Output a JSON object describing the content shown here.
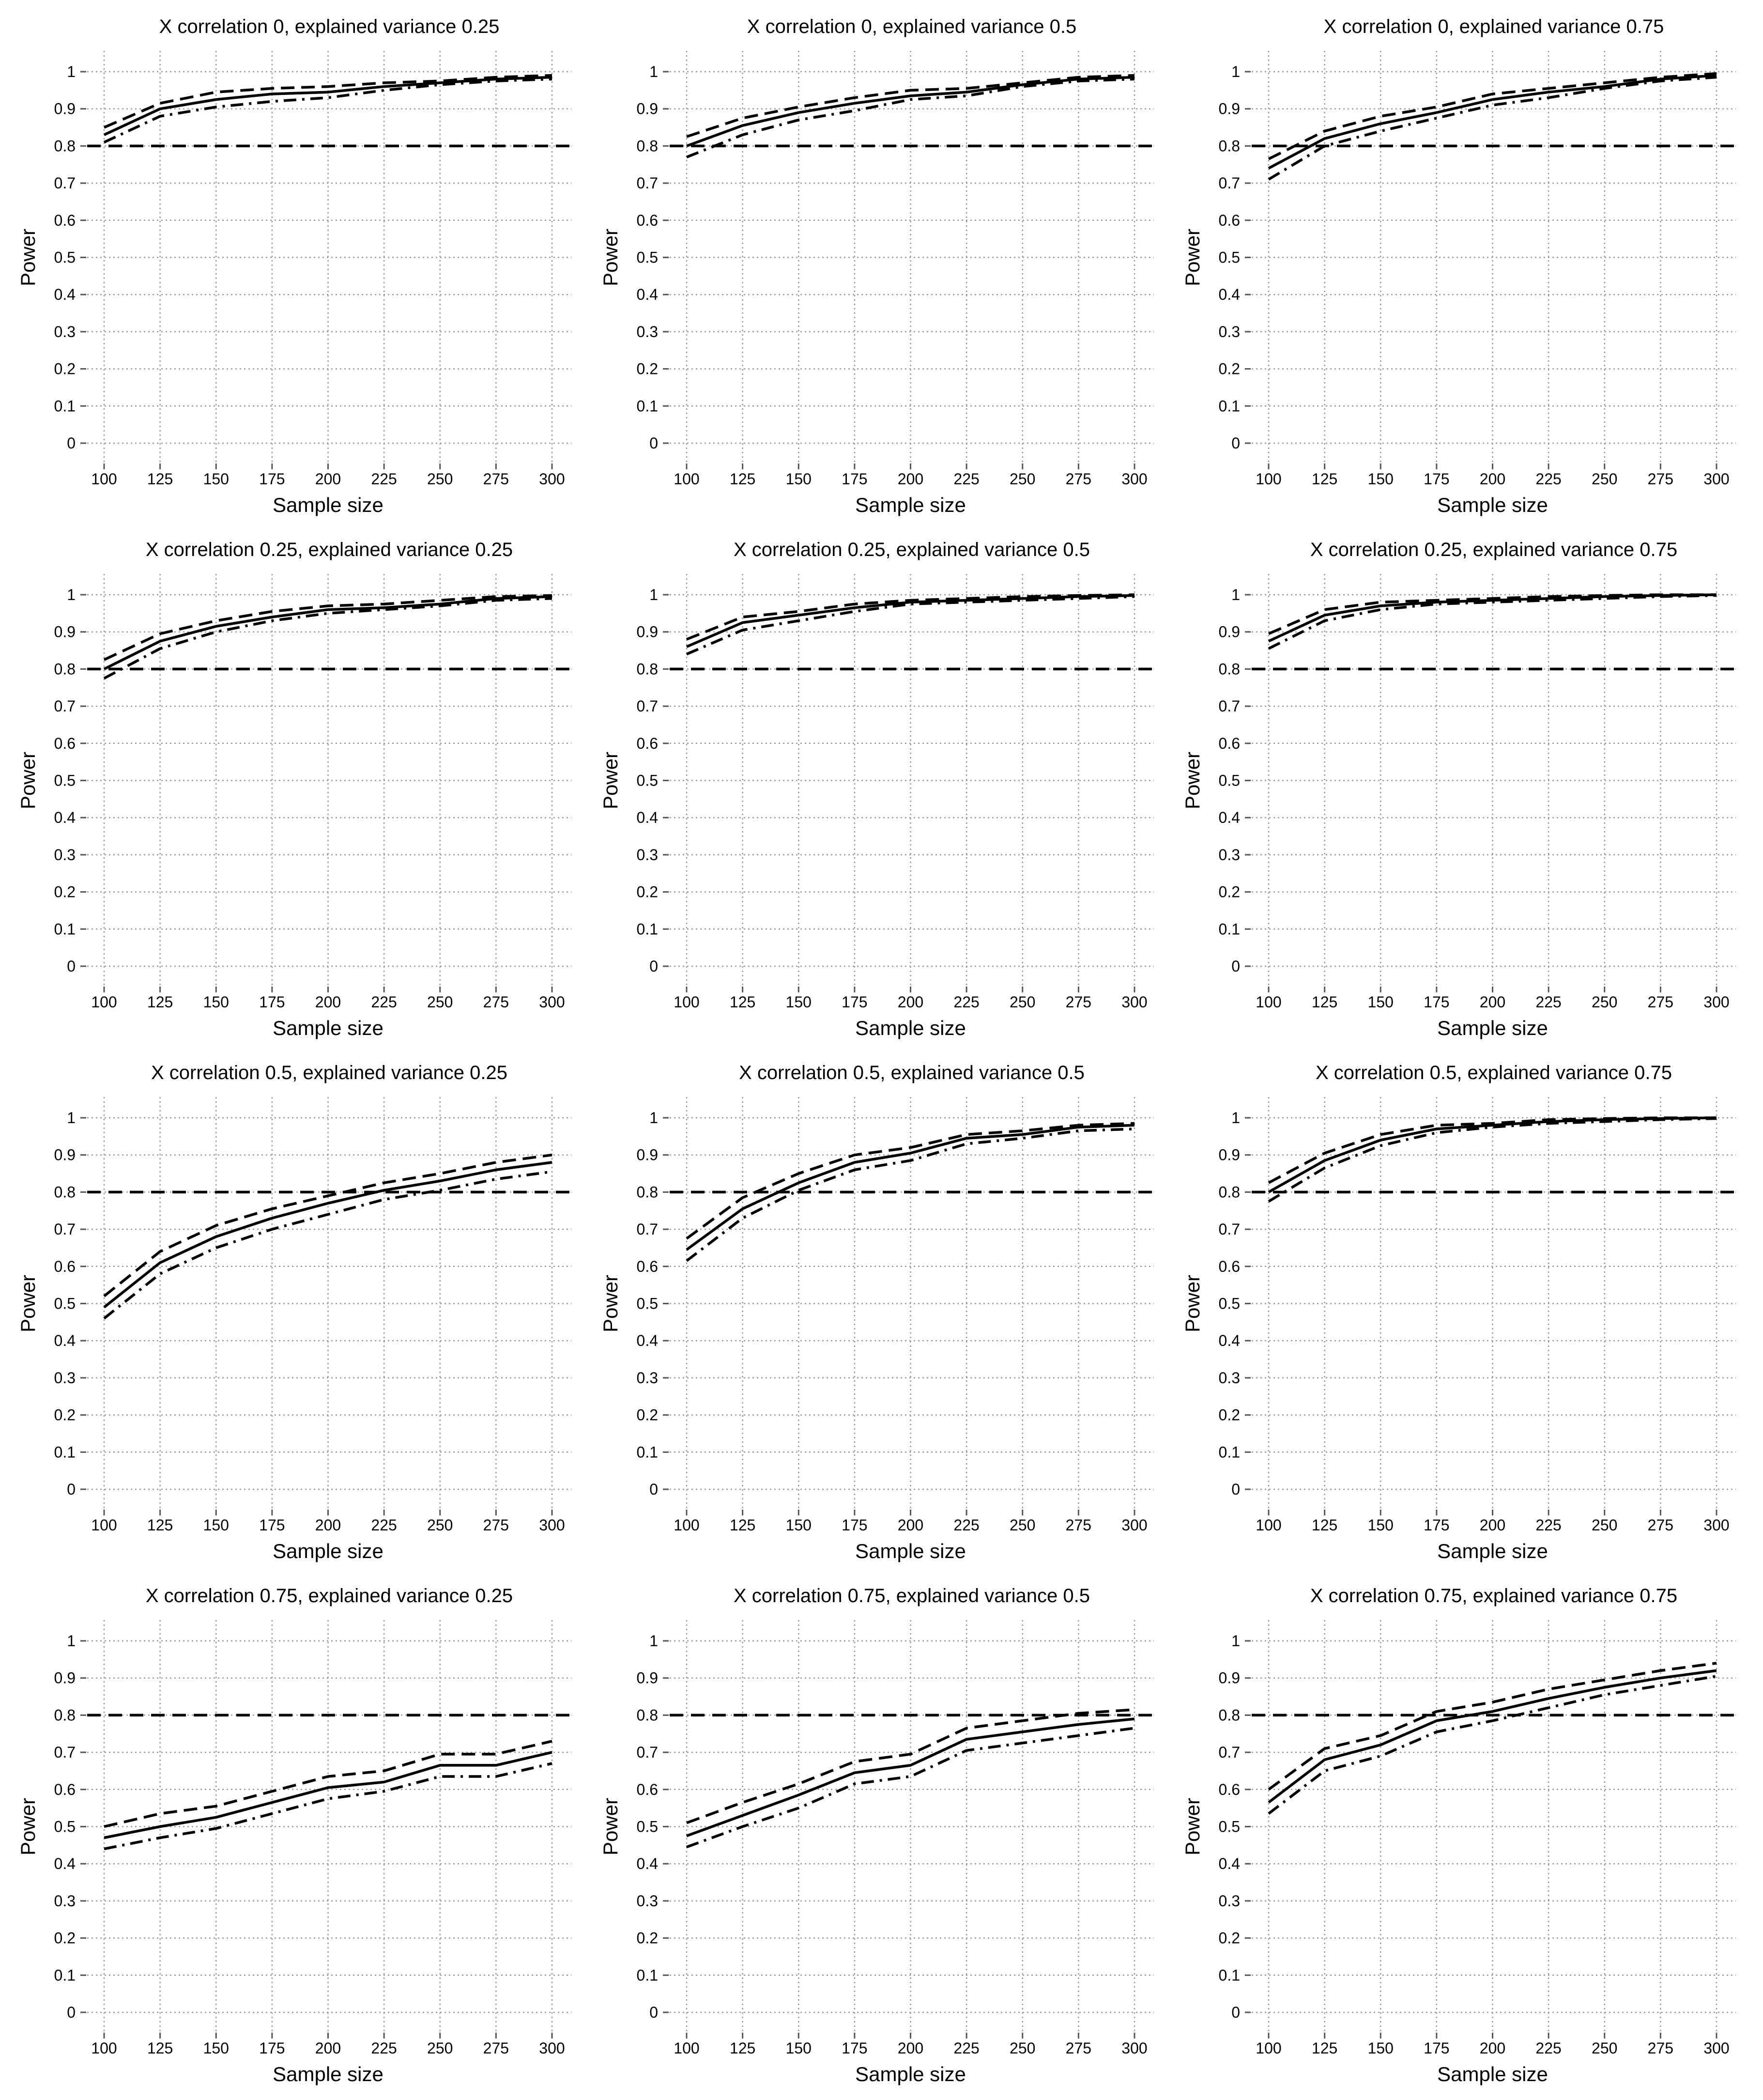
{
  "figure": {
    "style": {
      "background": "#ffffff",
      "grid_color": "#9a9a9a",
      "line_color": "#000000",
      "reference_line_color": "#000000"
    }
  },
  "chart_data": [
    {
      "type": "line",
      "title": "X correlation 0, explained variance 0.25",
      "xlabel": "Sample size",
      "ylabel": "Power",
      "x": [
        100,
        125,
        150,
        175,
        200,
        225,
        250,
        275,
        300
      ],
      "xticks": [
        "100",
        "125",
        "150",
        "175",
        "200",
        "225",
        "250",
        "275",
        "300"
      ],
      "yticks": [
        "0",
        "0.1",
        "0.2",
        "0.3",
        "0.4",
        "0.5",
        "0.6",
        "0.7",
        "0.8",
        "0.9",
        "1"
      ],
      "ylim": [
        0,
        1
      ],
      "grid": true,
      "reference_line": 0.8,
      "series": [
        {
          "style": "solid",
          "values": [
            0.83,
            0.9,
            0.925,
            0.94,
            0.945,
            0.96,
            0.97,
            0.98,
            0.985
          ]
        },
        {
          "style": "dashed",
          "values": [
            0.85,
            0.915,
            0.945,
            0.955,
            0.96,
            0.97,
            0.975,
            0.985,
            0.99
          ]
        },
        {
          "style": "dotdash",
          "values": [
            0.81,
            0.88,
            0.905,
            0.92,
            0.93,
            0.95,
            0.965,
            0.975,
            0.98
          ]
        }
      ]
    },
    {
      "type": "line",
      "title": "X correlation 0, explained variance 0.5",
      "xlabel": "Sample size",
      "ylabel": "Power",
      "x": [
        100,
        125,
        150,
        175,
        200,
        225,
        250,
        275,
        300
      ],
      "xticks": [
        "100",
        "125",
        "150",
        "175",
        "200",
        "225",
        "250",
        "275",
        "300"
      ],
      "yticks": [
        "0",
        "0.1",
        "0.2",
        "0.3",
        "0.4",
        "0.5",
        "0.6",
        "0.7",
        "0.8",
        "0.9",
        "1"
      ],
      "ylim": [
        0,
        1
      ],
      "grid": true,
      "reference_line": 0.8,
      "series": [
        {
          "style": "solid",
          "values": [
            0.8,
            0.855,
            0.89,
            0.915,
            0.935,
            0.945,
            0.965,
            0.98,
            0.985
          ]
        },
        {
          "style": "dashed",
          "values": [
            0.825,
            0.875,
            0.905,
            0.93,
            0.95,
            0.955,
            0.97,
            0.985,
            0.99
          ]
        },
        {
          "style": "dotdash",
          "values": [
            0.77,
            0.83,
            0.87,
            0.895,
            0.925,
            0.935,
            0.96,
            0.975,
            0.98
          ]
        }
      ]
    },
    {
      "type": "line",
      "title": "X correlation 0, explained variance 0.75",
      "xlabel": "Sample size",
      "ylabel": "Power",
      "x": [
        100,
        125,
        150,
        175,
        200,
        225,
        250,
        275,
        300
      ],
      "xticks": [
        "100",
        "125",
        "150",
        "175",
        "200",
        "225",
        "250",
        "275",
        "300"
      ],
      "yticks": [
        "0",
        "0.1",
        "0.2",
        "0.3",
        "0.4",
        "0.5",
        "0.6",
        "0.7",
        "0.8",
        "0.9",
        "1"
      ],
      "ylim": [
        0,
        1
      ],
      "grid": true,
      "reference_line": 0.8,
      "series": [
        {
          "style": "solid",
          "values": [
            0.74,
            0.82,
            0.86,
            0.89,
            0.925,
            0.945,
            0.96,
            0.98,
            0.99
          ]
        },
        {
          "style": "dashed",
          "values": [
            0.765,
            0.84,
            0.88,
            0.905,
            0.94,
            0.955,
            0.97,
            0.985,
            0.995
          ]
        },
        {
          "style": "dotdash",
          "values": [
            0.71,
            0.8,
            0.84,
            0.875,
            0.91,
            0.93,
            0.955,
            0.975,
            0.985
          ]
        }
      ]
    },
    {
      "type": "line",
      "title": "X correlation 0.25, explained variance 0.25",
      "xlabel": "Sample size",
      "ylabel": "Power",
      "x": [
        100,
        125,
        150,
        175,
        200,
        225,
        250,
        275,
        300
      ],
      "xticks": [
        "100",
        "125",
        "150",
        "175",
        "200",
        "225",
        "250",
        "275",
        "300"
      ],
      "yticks": [
        "0",
        "0.1",
        "0.2",
        "0.3",
        "0.4",
        "0.5",
        "0.6",
        "0.7",
        "0.8",
        "0.9",
        "1"
      ],
      "ylim": [
        0,
        1
      ],
      "grid": true,
      "reference_line": 0.8,
      "series": [
        {
          "style": "solid",
          "values": [
            0.8,
            0.875,
            0.915,
            0.94,
            0.96,
            0.965,
            0.975,
            0.99,
            0.995
          ]
        },
        {
          "style": "dashed",
          "values": [
            0.825,
            0.895,
            0.93,
            0.955,
            0.97,
            0.975,
            0.985,
            0.995,
            0.998
          ]
        },
        {
          "style": "dotdash",
          "values": [
            0.775,
            0.855,
            0.9,
            0.93,
            0.95,
            0.96,
            0.97,
            0.985,
            0.99
          ]
        }
      ]
    },
    {
      "type": "line",
      "title": "X correlation 0.25, explained variance 0.5",
      "xlabel": "Sample size",
      "ylabel": "Power",
      "x": [
        100,
        125,
        150,
        175,
        200,
        225,
        250,
        275,
        300
      ],
      "xticks": [
        "100",
        "125",
        "150",
        "175",
        "200",
        "225",
        "250",
        "275",
        "300"
      ],
      "yticks": [
        "0",
        "0.1",
        "0.2",
        "0.3",
        "0.4",
        "0.5",
        "0.6",
        "0.7",
        "0.8",
        "0.9",
        "1"
      ],
      "ylim": [
        0,
        1
      ],
      "grid": true,
      "reference_line": 0.8,
      "series": [
        {
          "style": "solid",
          "values": [
            0.86,
            0.925,
            0.945,
            0.965,
            0.98,
            0.985,
            0.99,
            0.995,
            0.998
          ]
        },
        {
          "style": "dashed",
          "values": [
            0.88,
            0.94,
            0.955,
            0.975,
            0.985,
            0.99,
            0.995,
            0.998,
            1.0
          ]
        },
        {
          "style": "dotdash",
          "values": [
            0.84,
            0.905,
            0.93,
            0.955,
            0.975,
            0.98,
            0.985,
            0.99,
            0.995
          ]
        }
      ]
    },
    {
      "type": "line",
      "title": "X correlation 0.25, explained variance 0.75",
      "xlabel": "Sample size",
      "ylabel": "Power",
      "x": [
        100,
        125,
        150,
        175,
        200,
        225,
        250,
        275,
        300
      ],
      "xticks": [
        "100",
        "125",
        "150",
        "175",
        "200",
        "225",
        "250",
        "275",
        "300"
      ],
      "yticks": [
        "0",
        "0.1",
        "0.2",
        "0.3",
        "0.4",
        "0.5",
        "0.6",
        "0.7",
        "0.8",
        "0.9",
        "1"
      ],
      "ylim": [
        0,
        1
      ],
      "grid": true,
      "reference_line": 0.8,
      "series": [
        {
          "style": "solid",
          "values": [
            0.875,
            0.945,
            0.97,
            0.98,
            0.985,
            0.99,
            0.995,
            0.998,
            1.0
          ]
        },
        {
          "style": "dashed",
          "values": [
            0.895,
            0.96,
            0.98,
            0.985,
            0.99,
            0.995,
            0.998,
            1.0,
            1.0
          ]
        },
        {
          "style": "dotdash",
          "values": [
            0.855,
            0.93,
            0.96,
            0.975,
            0.98,
            0.985,
            0.99,
            0.995,
            0.998
          ]
        }
      ]
    },
    {
      "type": "line",
      "title": "X correlation 0.5, explained variance 0.25",
      "xlabel": "Sample size",
      "ylabel": "Power",
      "x": [
        100,
        125,
        150,
        175,
        200,
        225,
        250,
        275,
        300
      ],
      "xticks": [
        "100",
        "125",
        "150",
        "175",
        "200",
        "225",
        "250",
        "275",
        "300"
      ],
      "yticks": [
        "0",
        "0.1",
        "0.2",
        "0.3",
        "0.4",
        "0.5",
        "0.6",
        "0.7",
        "0.8",
        "0.9",
        "1"
      ],
      "ylim": [
        0,
        1
      ],
      "grid": true,
      "reference_line": 0.8,
      "series": [
        {
          "style": "solid",
          "values": [
            0.49,
            0.61,
            0.68,
            0.73,
            0.77,
            0.805,
            0.83,
            0.86,
            0.88
          ]
        },
        {
          "style": "dashed",
          "values": [
            0.52,
            0.64,
            0.71,
            0.755,
            0.79,
            0.825,
            0.85,
            0.88,
            0.9
          ]
        },
        {
          "style": "dotdash",
          "values": [
            0.46,
            0.58,
            0.65,
            0.7,
            0.74,
            0.78,
            0.805,
            0.835,
            0.855
          ]
        }
      ]
    },
    {
      "type": "line",
      "title": "X correlation 0.5, explained variance 0.5",
      "xlabel": "Sample size",
      "ylabel": "Power",
      "x": [
        100,
        125,
        150,
        175,
        200,
        225,
        250,
        275,
        300
      ],
      "xticks": [
        "100",
        "125",
        "150",
        "175",
        "200",
        "225",
        "250",
        "275",
        "300"
      ],
      "yticks": [
        "0",
        "0.1",
        "0.2",
        "0.3",
        "0.4",
        "0.5",
        "0.6",
        "0.7",
        "0.8",
        "0.9",
        "1"
      ],
      "ylim": [
        0,
        1
      ],
      "grid": true,
      "reference_line": 0.8,
      "series": [
        {
          "style": "solid",
          "values": [
            0.645,
            0.755,
            0.825,
            0.88,
            0.905,
            0.945,
            0.955,
            0.975,
            0.98
          ]
        },
        {
          "style": "dashed",
          "values": [
            0.675,
            0.785,
            0.85,
            0.9,
            0.92,
            0.955,
            0.965,
            0.98,
            0.985
          ]
        },
        {
          "style": "dotdash",
          "values": [
            0.615,
            0.73,
            0.805,
            0.86,
            0.885,
            0.93,
            0.945,
            0.965,
            0.97
          ]
        }
      ]
    },
    {
      "type": "line",
      "title": "X correlation 0.5, explained variance 0.75",
      "xlabel": "Sample size",
      "ylabel": "Power",
      "x": [
        100,
        125,
        150,
        175,
        200,
        225,
        250,
        275,
        300
      ],
      "xticks": [
        "100",
        "125",
        "150",
        "175",
        "200",
        "225",
        "250",
        "275",
        "300"
      ],
      "yticks": [
        "0",
        "0.1",
        "0.2",
        "0.3",
        "0.4",
        "0.5",
        "0.6",
        "0.7",
        "0.8",
        "0.9",
        "1"
      ],
      "ylim": [
        0,
        1
      ],
      "grid": true,
      "reference_line": 0.8,
      "series": [
        {
          "style": "solid",
          "values": [
            0.8,
            0.885,
            0.94,
            0.97,
            0.98,
            0.99,
            0.995,
            0.998,
            1.0
          ]
        },
        {
          "style": "dashed",
          "values": [
            0.825,
            0.905,
            0.955,
            0.98,
            0.985,
            0.995,
            0.998,
            1.0,
            1.0
          ]
        },
        {
          "style": "dotdash",
          "values": [
            0.775,
            0.865,
            0.925,
            0.96,
            0.975,
            0.985,
            0.99,
            0.995,
            0.998
          ]
        }
      ]
    },
    {
      "type": "line",
      "title": "X correlation 0.75, explained variance 0.25",
      "xlabel": "Sample size",
      "ylabel": "Power",
      "x": [
        100,
        125,
        150,
        175,
        200,
        225,
        250,
        275,
        300
      ],
      "xticks": [
        "100",
        "125",
        "150",
        "175",
        "200",
        "225",
        "250",
        "275",
        "300"
      ],
      "yticks": [
        "0",
        "0.1",
        "0.2",
        "0.3",
        "0.4",
        "0.5",
        "0.6",
        "0.7",
        "0.8",
        "0.9",
        "1"
      ],
      "ylim": [
        0,
        1
      ],
      "grid": true,
      "reference_line": 0.8,
      "series": [
        {
          "style": "solid",
          "values": [
            0.47,
            0.5,
            0.525,
            0.565,
            0.605,
            0.62,
            0.665,
            0.665,
            0.7
          ]
        },
        {
          "style": "dashed",
          "values": [
            0.5,
            0.535,
            0.555,
            0.595,
            0.635,
            0.65,
            0.695,
            0.695,
            0.73
          ]
        },
        {
          "style": "dotdash",
          "values": [
            0.44,
            0.47,
            0.495,
            0.535,
            0.575,
            0.595,
            0.635,
            0.635,
            0.67
          ]
        }
      ]
    },
    {
      "type": "line",
      "title": "X correlation 0.75, explained variance 0.5",
      "xlabel": "Sample size",
      "ylabel": "Power",
      "x": [
        100,
        125,
        150,
        175,
        200,
        225,
        250,
        275,
        300
      ],
      "xticks": [
        "100",
        "125",
        "150",
        "175",
        "200",
        "225",
        "250",
        "275",
        "300"
      ],
      "yticks": [
        "0",
        "0.1",
        "0.2",
        "0.3",
        "0.4",
        "0.5",
        "0.6",
        "0.7",
        "0.8",
        "0.9",
        "1"
      ],
      "ylim": [
        0,
        1
      ],
      "grid": true,
      "reference_line": 0.8,
      "series": [
        {
          "style": "solid",
          "values": [
            0.475,
            0.53,
            0.585,
            0.645,
            0.665,
            0.735,
            0.755,
            0.775,
            0.79
          ]
        },
        {
          "style": "dashed",
          "values": [
            0.51,
            0.565,
            0.615,
            0.675,
            0.695,
            0.765,
            0.785,
            0.805,
            0.815
          ]
        },
        {
          "style": "dotdash",
          "values": [
            0.445,
            0.5,
            0.55,
            0.615,
            0.635,
            0.705,
            0.725,
            0.745,
            0.765
          ]
        }
      ]
    },
    {
      "type": "line",
      "title": "X correlation 0.75, explained variance 0.75",
      "xlabel": "Sample size",
      "ylabel": "Power",
      "x": [
        100,
        125,
        150,
        175,
        200,
        225,
        250,
        275,
        300
      ],
      "xticks": [
        "100",
        "125",
        "150",
        "175",
        "200",
        "225",
        "250",
        "275",
        "300"
      ],
      "yticks": [
        "0",
        "0.1",
        "0.2",
        "0.3",
        "0.4",
        "0.5",
        "0.6",
        "0.7",
        "0.8",
        "0.9",
        "1"
      ],
      "ylim": [
        0,
        1
      ],
      "grid": true,
      "reference_line": 0.8,
      "series": [
        {
          "style": "solid",
          "values": [
            0.565,
            0.68,
            0.72,
            0.785,
            0.81,
            0.845,
            0.875,
            0.9,
            0.92
          ]
        },
        {
          "style": "dashed",
          "values": [
            0.6,
            0.71,
            0.745,
            0.81,
            0.835,
            0.87,
            0.895,
            0.92,
            0.94
          ]
        },
        {
          "style": "dotdash",
          "values": [
            0.535,
            0.65,
            0.69,
            0.755,
            0.785,
            0.82,
            0.855,
            0.88,
            0.905
          ]
        }
      ]
    }
  ]
}
